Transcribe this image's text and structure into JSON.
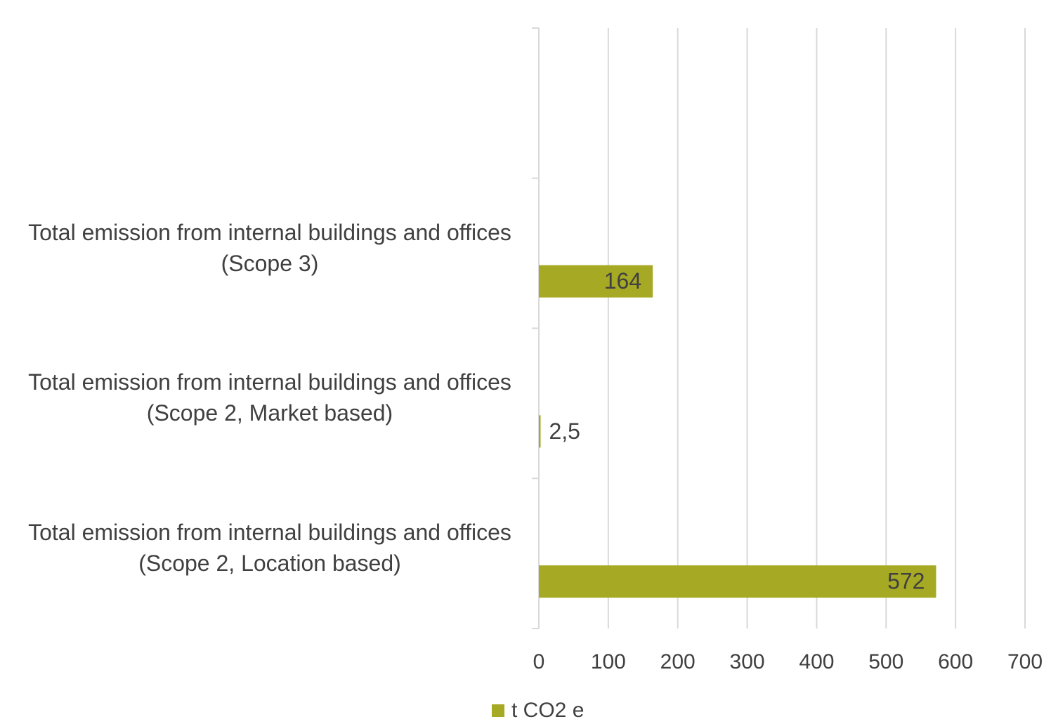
{
  "chart_data": {
    "type": "bar",
    "orientation": "horizontal",
    "categories": [
      null,
      "Total emission from internal buildings and offices (Scope 3)",
      "Total emission from internal buildings and offices (Scope 2, Market based)",
      "Total emission from internal buildings and offices (Scope 2, Location based)"
    ],
    "series": [
      {
        "name": "t CO2 e",
        "color": "#a6a923",
        "values": [
          null,
          164,
          2.5,
          572
        ],
        "value_labels": [
          null,
          "164",
          "2,5",
          "572"
        ]
      }
    ],
    "xlim": [
      0,
      700
    ],
    "xticks": [
      0,
      100,
      200,
      300,
      400,
      500,
      600,
      700
    ],
    "grid": true,
    "legend": "bottom"
  }
}
